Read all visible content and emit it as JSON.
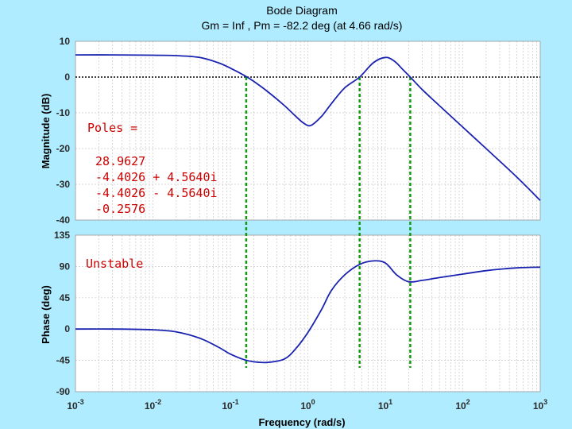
{
  "title": "Bode Diagram",
  "subtitle": "Gm = Inf ,  Pm = -82.2 deg (at 4.66 rad/s)",
  "xlabel": "Frequency  (rad/s)",
  "annotations": {
    "poles_label": "Poles =",
    "poles": [
      "28.9627",
      "-4.4026 + 4.5640i",
      "-4.4026 - 4.5640i",
      "-0.2576"
    ],
    "stability": "Unstable"
  },
  "colors": {
    "curve": "#1a22b0",
    "marker": "#119911",
    "zero_line": "#000000",
    "poles_text": "#cc0000"
  },
  "chart_data": [
    {
      "type": "line",
      "name": "magnitude",
      "ylabel": "Magnitude (dB)",
      "xscale": "log",
      "xlim": [
        0.001,
        1000
      ],
      "ylim": [
        -40,
        10
      ],
      "yticks": [
        10,
        0,
        -10,
        -20,
        -30,
        -40
      ],
      "zero_line": true,
      "grid": true,
      "x": [
        0.001,
        0.003,
        0.01,
        0.02,
        0.04,
        0.07,
        0.1,
        0.15,
        0.2,
        0.3,
        0.5,
        0.7,
        0.9,
        1.1,
        1.5,
        2,
        3,
        4.66,
        7,
        10,
        13,
        17,
        21,
        30,
        50,
        100,
        200,
        500,
        1000
      ],
      "y": [
        6.2,
        6.2,
        6.1,
        6,
        5.5,
        4,
        2.5,
        0.5,
        -1.2,
        -4,
        -8,
        -11,
        -13,
        -13.5,
        -11,
        -7.5,
        -3,
        0,
        4,
        5.5,
        4.5,
        2,
        0,
        -3.5,
        -8,
        -14,
        -20,
        -28,
        -34.5
      ]
    },
    {
      "type": "line",
      "name": "phase",
      "ylabel": "Phase (deg)",
      "xscale": "log",
      "xlim": [
        0.001,
        1000
      ],
      "ylim": [
        -90,
        135
      ],
      "yticks": [
        135,
        90,
        45,
        0,
        -45,
        -90
      ],
      "xticks": [
        {
          "base": "10",
          "exp": "-3"
        },
        {
          "base": "10",
          "exp": "-2"
        },
        {
          "base": "10",
          "exp": "-1"
        },
        {
          "base": "10",
          "exp": "0"
        },
        {
          "base": "10",
          "exp": "1"
        },
        {
          "base": "10",
          "exp": "2"
        },
        {
          "base": "10",
          "exp": "3"
        }
      ],
      "grid": true,
      "x": [
        0.001,
        0.003,
        0.01,
        0.02,
        0.04,
        0.07,
        0.1,
        0.15,
        0.2,
        0.3,
        0.5,
        0.7,
        1,
        1.5,
        2,
        3,
        4.66,
        7,
        10,
        14,
        20,
        30,
        50,
        100,
        200,
        500,
        1000
      ],
      "y": [
        0,
        0,
        -1,
        -4,
        -13,
        -26,
        -36,
        -44,
        -47,
        -48,
        -43,
        -28,
        -5,
        28,
        55,
        78,
        93,
        98,
        95,
        78,
        68,
        70,
        74,
        79,
        84,
        88,
        89
      ]
    }
  ],
  "crossover_markers": [
    0.16,
    4.66,
    21
  ]
}
